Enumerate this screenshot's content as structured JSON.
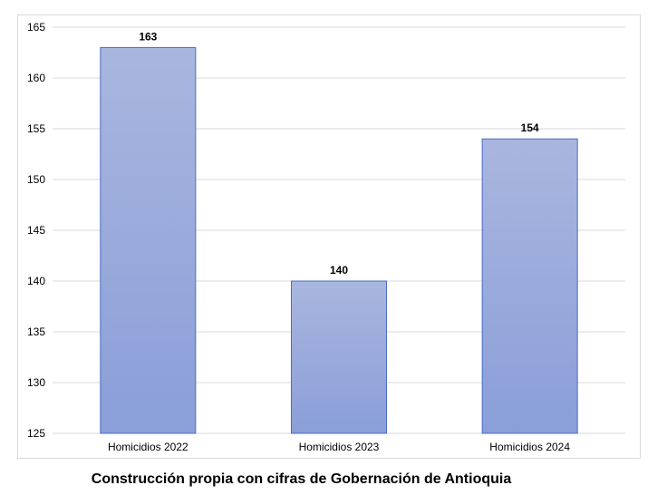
{
  "chart_data": {
    "type": "bar",
    "categories": [
      "Homicidios 2022",
      "Homicidios 2023",
      "Homicidios 2024"
    ],
    "values": [
      163,
      140,
      154
    ],
    "data_labels": [
      "163",
      "140",
      "154"
    ],
    "ylim": [
      125,
      165
    ],
    "yticks": [
      125,
      130,
      135,
      140,
      145,
      150,
      155,
      160,
      165
    ],
    "grid": true,
    "legend": "none",
    "colors": {
      "bar_top": "#a9b6df",
      "bar_bottom": "#8a9ed8",
      "bar_stroke": "#4a6cc2",
      "grid": "#d9d9d9"
    }
  },
  "caption": "Construcción propia con cifras de Gobernación de Antioquia"
}
